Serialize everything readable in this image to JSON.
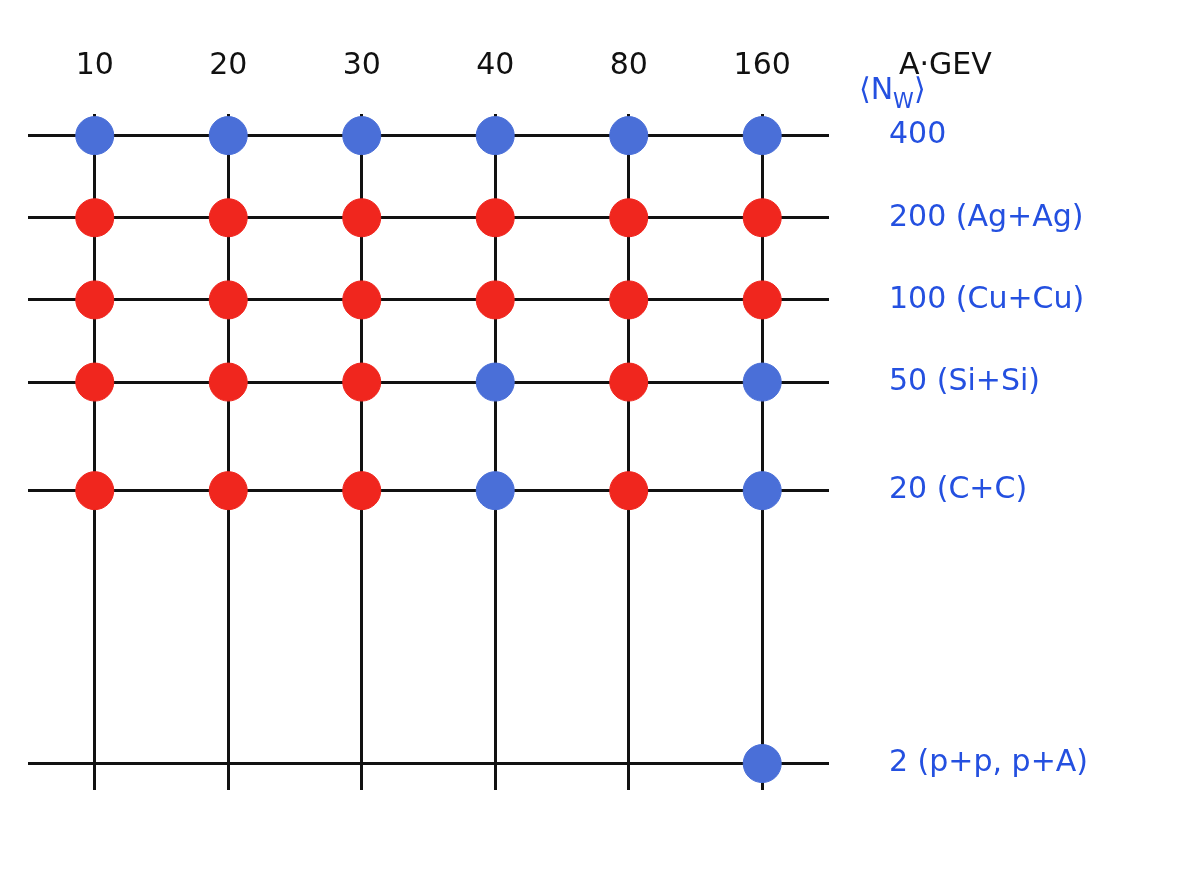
{
  "chart_data": {
    "type": "scatter",
    "xlabel": "A·GEV",
    "ylabel": "⟨N$_{W}$⟩",
    "categories": [
      "10",
      "20",
      "30",
      "40",
      "80",
      "160"
    ],
    "log": "y",
    "ylim": [
      1.6,
      480
    ],
    "yticks": [
      {
        "value": 2,
        "label": "2 (p+p, p+A)"
      },
      {
        "value": 20,
        "label": "20 (C+C)"
      },
      {
        "value": 50,
        "label": "50 (Si+Si)"
      },
      {
        "value": 100,
        "label": "100 (Cu+Cu)"
      },
      {
        "value": 200,
        "label": "200 (Ag+Ag)"
      },
      400
    ],
    "grid": true,
    "legend": false,
    "marker": "circle",
    "series": [
      {
        "color": "#4a6fd8",
        "x": [
          "10",
          "20",
          "30",
          "40",
          "80",
          "160",
          "40",
          "40",
          "160",
          "160",
          "160"
        ],
        "values": [
          400,
          400,
          400,
          400,
          400,
          400,
          50,
          20,
          50,
          20,
          2
        ]
      },
      {
        "color": "#f0261e",
        "x": [
          "10",
          "20",
          "30",
          "40",
          "80",
          "160",
          "10",
          "20",
          "30",
          "40",
          "80",
          "160",
          "10",
          "20",
          "30",
          "80",
          "10",
          "20",
          "30",
          "80"
        ],
        "values": [
          200,
          200,
          200,
          200,
          200,
          200,
          100,
          100,
          100,
          100,
          100,
          100,
          50,
          50,
          50,
          50,
          20,
          20,
          20,
          20
        ]
      }
    ]
  }
}
